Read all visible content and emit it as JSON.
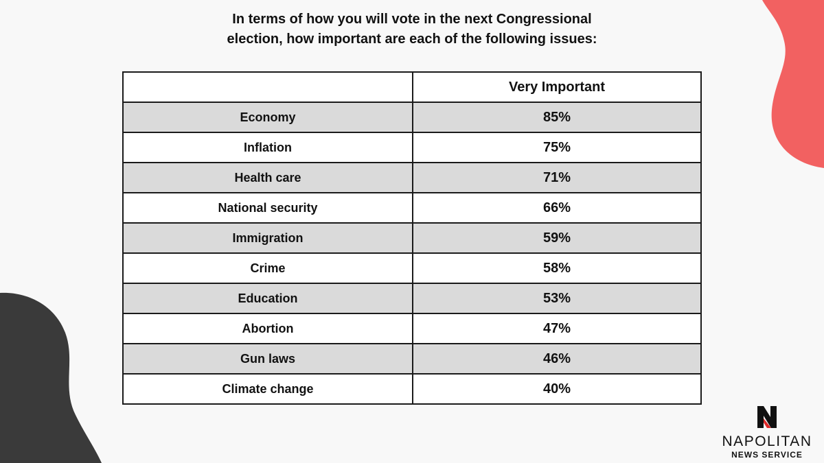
{
  "title": "In terms of how you will vote in the next Congressional election, how important are each of the following issues:",
  "table": {
    "header": [
      "",
      "Very Important"
    ]
  },
  "chart_data": {
    "type": "table",
    "title": "In terms of how you will vote in the next Congressional election, how important are each of the following issues:",
    "columns": [
      "",
      "Very Important"
    ],
    "categories": [
      "Economy",
      "Inflation",
      "Health care",
      "National security",
      "Immigration",
      "Crime",
      "Education",
      "Abortion",
      "Gun laws",
      "Climate change"
    ],
    "series": [
      {
        "name": "Very Important",
        "values": [
          85,
          75,
          71,
          66,
          59,
          58,
          53,
          47,
          46,
          40
        ]
      }
    ],
    "value_labels": [
      "85%",
      "75%",
      "71%",
      "66%",
      "59%",
      "58%",
      "53%",
      "47%",
      "46%",
      "40%"
    ]
  },
  "logo": {
    "name": "NAPOLITAN",
    "subtitle": "NEWS SERVICE",
    "mark_letter": "N"
  },
  "colors": {
    "background": "#f8f8f8",
    "accent_red": "#f26161",
    "dark_blob": "#3a3a3a",
    "row_shade": "#dadada",
    "logo_red": "#e02b2b"
  }
}
